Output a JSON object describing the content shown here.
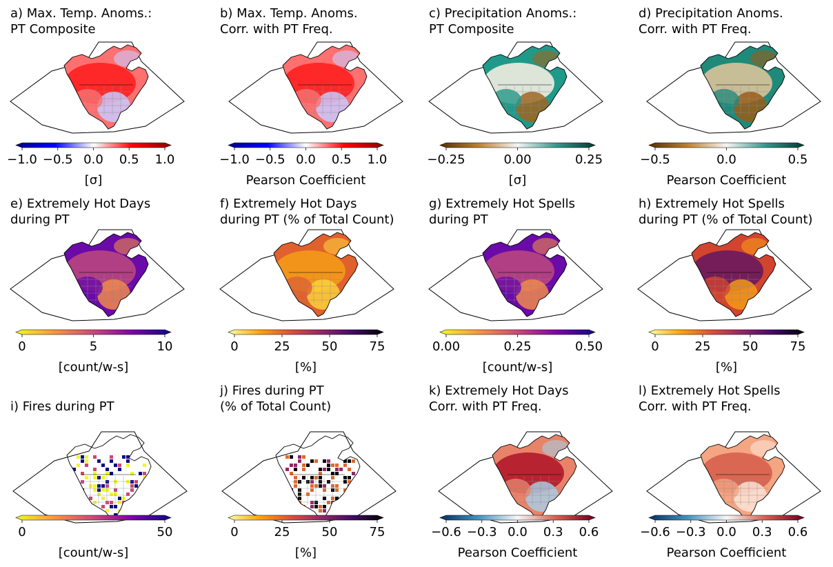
{
  "panels": [
    {
      "id": "a",
      "title1": "a) Max. Temp. Anoms.:",
      "title2": "PT Composite",
      "unit": "[σ]",
      "ticks": [
        "−1.0",
        "−0.5",
        "0.0",
        "0.5",
        "1.0"
      ],
      "cmap": [
        "#00008b",
        "#0000ff",
        "#ffffff",
        "#ff0000",
        "#8b0000"
      ],
      "mapColors": [
        "#ff2020",
        "#ff7070",
        "#c9c9ff"
      ],
      "style": "blob"
    },
    {
      "id": "b",
      "title1": "b) Max. Temp. Anoms.",
      "title2": "Corr. with PT Freq.",
      "unit": "Pearson Coefficient",
      "ticks": [
        "−1.0",
        "−0.5",
        "0.0",
        "0.5",
        "1.0"
      ],
      "cmap": [
        "#00008b",
        "#0000ff",
        "#ffffff",
        "#ff0000",
        "#8b0000"
      ],
      "mapColors": [
        "#ff2020",
        "#ff7070",
        "#c9c9ff"
      ],
      "style": "blob"
    },
    {
      "id": "c",
      "title1": "c) Precipitation Anoms.:",
      "title2": "PT Composite",
      "unit": "[σ]",
      "ticks": [
        "−0.25",
        "0.00",
        "0.25"
      ],
      "cmap": [
        "#543005",
        "#bf812d",
        "#f5f5f5",
        "#35978f",
        "#003c30"
      ],
      "mapColors": [
        "#f2ece0",
        "#1f9a8a",
        "#a0651f"
      ],
      "style": "blob"
    },
    {
      "id": "d",
      "title1": "d) Precipitation Anoms.",
      "title2": "Corr. with PT Freq.",
      "unit": "Pearson Coefficient",
      "ticks": [
        "−0.5",
        "0.0",
        "0.5"
      ],
      "cmap": [
        "#543005",
        "#bf812d",
        "#f5f5f5",
        "#35978f",
        "#003c30"
      ],
      "mapColors": [
        "#d9c29a",
        "#1f8a7a",
        "#9a5c18"
      ],
      "style": "blob"
    },
    {
      "id": "e",
      "title1": "e) Extremely Hot Days",
      "title2": "during PT",
      "unit": "[count/w-s]",
      "ticks": [
        "0",
        "5",
        "10"
      ],
      "cmap": [
        "#f0f921",
        "#f89540",
        "#cc4778",
        "#7e03a8",
        "#0d0887"
      ],
      "mapColors": [
        "#b8457e",
        "#6a0aa8",
        "#f28a4a"
      ],
      "style": "blob"
    },
    {
      "id": "f",
      "title1": "f) Extremely Hot Days",
      "title2": "during PT (% of Total Count)",
      "unit": "[%]",
      "ticks": [
        "0",
        "25",
        "50",
        "75"
      ],
      "cmap": [
        "#fcffa4",
        "#fca50a",
        "#dd513a",
        "#932667",
        "#420a68",
        "#000004"
      ],
      "mapColors": [
        "#f59a18",
        "#e0612e",
        "#fbd13a"
      ],
      "style": "blob"
    },
    {
      "id": "g",
      "title1": "g) Extremely Hot Spells",
      "title2": "during PT",
      "unit": "[count/w-s]",
      "ticks": [
        "0.00",
        "0.25",
        "0.50"
      ],
      "cmap": [
        "#f0f921",
        "#f89540",
        "#cc4778",
        "#7e03a8",
        "#0d0887"
      ],
      "mapColors": [
        "#b8457e",
        "#6a0aa8",
        "#f28a4a"
      ],
      "style": "blob"
    },
    {
      "id": "h",
      "title1": "h) Extremely Hot Spells",
      "title2": "during PT (% of Total Count)",
      "unit": "[%]",
      "ticks": [
        "0",
        "25",
        "50",
        "75"
      ],
      "cmap": [
        "#fcffa4",
        "#fca50a",
        "#dd513a",
        "#932667",
        "#420a68",
        "#000004"
      ],
      "mapColors": [
        "#6a1a5e",
        "#d2442e",
        "#f59a18"
      ],
      "style": "blob"
    },
    {
      "id": "i",
      "title1": "i) Fires during PT",
      "title2": "",
      "unit": "[count/w-s]",
      "ticks": [
        "0",
        "50"
      ],
      "cmap": [
        "#f0f921",
        "#f89540",
        "#cc4778",
        "#7e03a8",
        "#0d0887"
      ],
      "mapColors": [
        "#f0f921",
        "#cc4778",
        "#0d0887"
      ],
      "style": "squares"
    },
    {
      "id": "j",
      "title1": "j) Fires during PT",
      "title2": "(% of Total Count)",
      "unit": "[%]",
      "ticks": [
        "0",
        "25",
        "50",
        "75"
      ],
      "cmap": [
        "#fcffa4",
        "#fca50a",
        "#dd513a",
        "#932667",
        "#420a68",
        "#000004"
      ],
      "mapColors": [
        "#e06a2a",
        "#932667",
        "#000004"
      ],
      "style": "squares"
    },
    {
      "id": "k",
      "title1": "k) Extremely Hot Days",
      "title2": "Corr. with PT Freq.",
      "unit": "Pearson Coefficient",
      "ticks": [
        "−0.6",
        "−0.3",
        "0.0",
        "0.3",
        "0.6"
      ],
      "cmap": [
        "#053061",
        "#4393c3",
        "#f7f7f7",
        "#d6604d",
        "#67001f"
      ],
      "mapColors": [
        "#b2182b",
        "#e8836a",
        "#a9cde3"
      ],
      "style": "blob"
    },
    {
      "id": "l",
      "title1": "l) Extremely Hot Spells",
      "title2": "Corr. with PT Freq.",
      "unit": "Pearson Coefficient",
      "ticks": [
        "−0.6",
        "−0.3",
        "0.0",
        "0.3",
        "0.6"
      ],
      "cmap": [
        "#053061",
        "#4393c3",
        "#f7f7f7",
        "#d6604d",
        "#67001f"
      ],
      "mapColors": [
        "#d6604d",
        "#f4a582",
        "#fbe3d6"
      ],
      "style": "blob"
    }
  ]
}
